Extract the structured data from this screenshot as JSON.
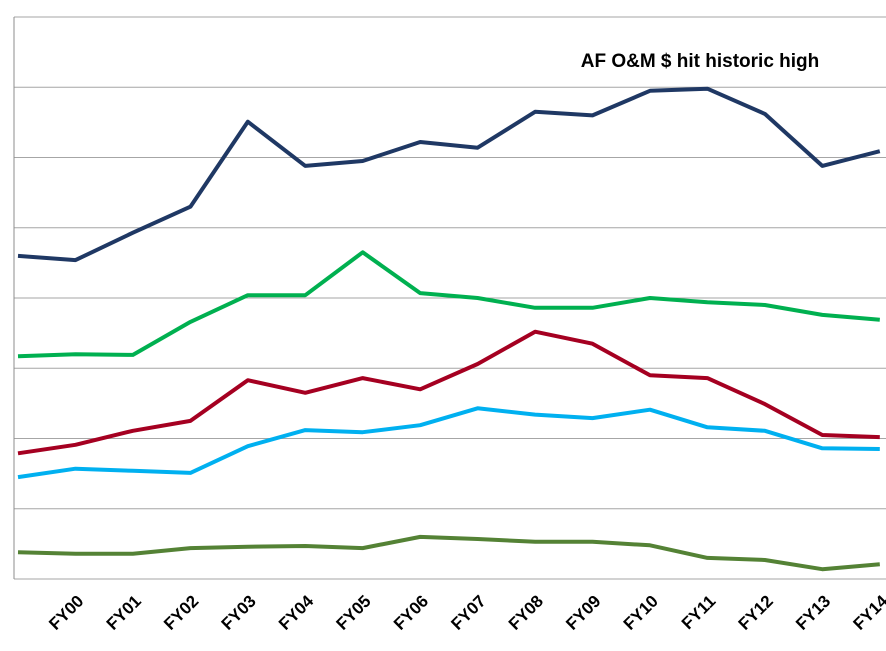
{
  "chart_data": {
    "type": "line",
    "annotation": "AF O&M $ hit historic high",
    "categories": [
      null,
      "FY00",
      "FY01",
      "FY02",
      "FY03",
      "FY04",
      "FY05",
      "FY06",
      "FY07",
      "FY08",
      "FY09",
      "FY10",
      "FY11",
      "FY12",
      "FY13",
      "FY14"
    ],
    "series": [
      {
        "color": "#1f3864",
        "values": [
          4.6,
          4.54,
          4.93,
          5.3,
          6.51,
          5.88,
          5.95,
          6.22,
          6.14,
          6.65,
          6.6,
          6.95,
          6.98,
          6.62,
          5.88,
          6.09
        ]
      },
      {
        "color": "#00b050",
        "values": [
          3.17,
          3.2,
          3.19,
          3.66,
          4.04,
          4.04,
          4.65,
          4.07,
          4.0,
          3.86,
          3.86,
          4.0,
          3.94,
          3.9,
          3.76,
          3.69
        ]
      },
      {
        "color": "#a50021",
        "values": [
          1.79,
          1.91,
          2.11,
          2.25,
          2.83,
          2.65,
          2.86,
          2.7,
          3.06,
          3.52,
          3.35,
          2.9,
          2.86,
          2.49,
          2.05,
          2.02
        ]
      },
      {
        "color": "#00b0f0",
        "values": [
          1.45,
          1.57,
          1.54,
          1.51,
          1.89,
          2.12,
          2.09,
          2.19,
          2.43,
          2.34,
          2.29,
          2.41,
          2.16,
          2.11,
          1.86,
          1.85
        ]
      },
      {
        "color": "#548235",
        "values": [
          0.38,
          0.36,
          0.36,
          0.44,
          0.46,
          0.47,
          0.44,
          0.6,
          0.57,
          0.53,
          0.53,
          0.48,
          0.3,
          0.27,
          0.14,
          0.21
        ]
      }
    ],
    "ylim": [
      0,
      8
    ],
    "yticks": [
      0,
      1,
      2,
      3,
      4,
      5,
      6,
      7,
      8
    ],
    "grid": true
  }
}
